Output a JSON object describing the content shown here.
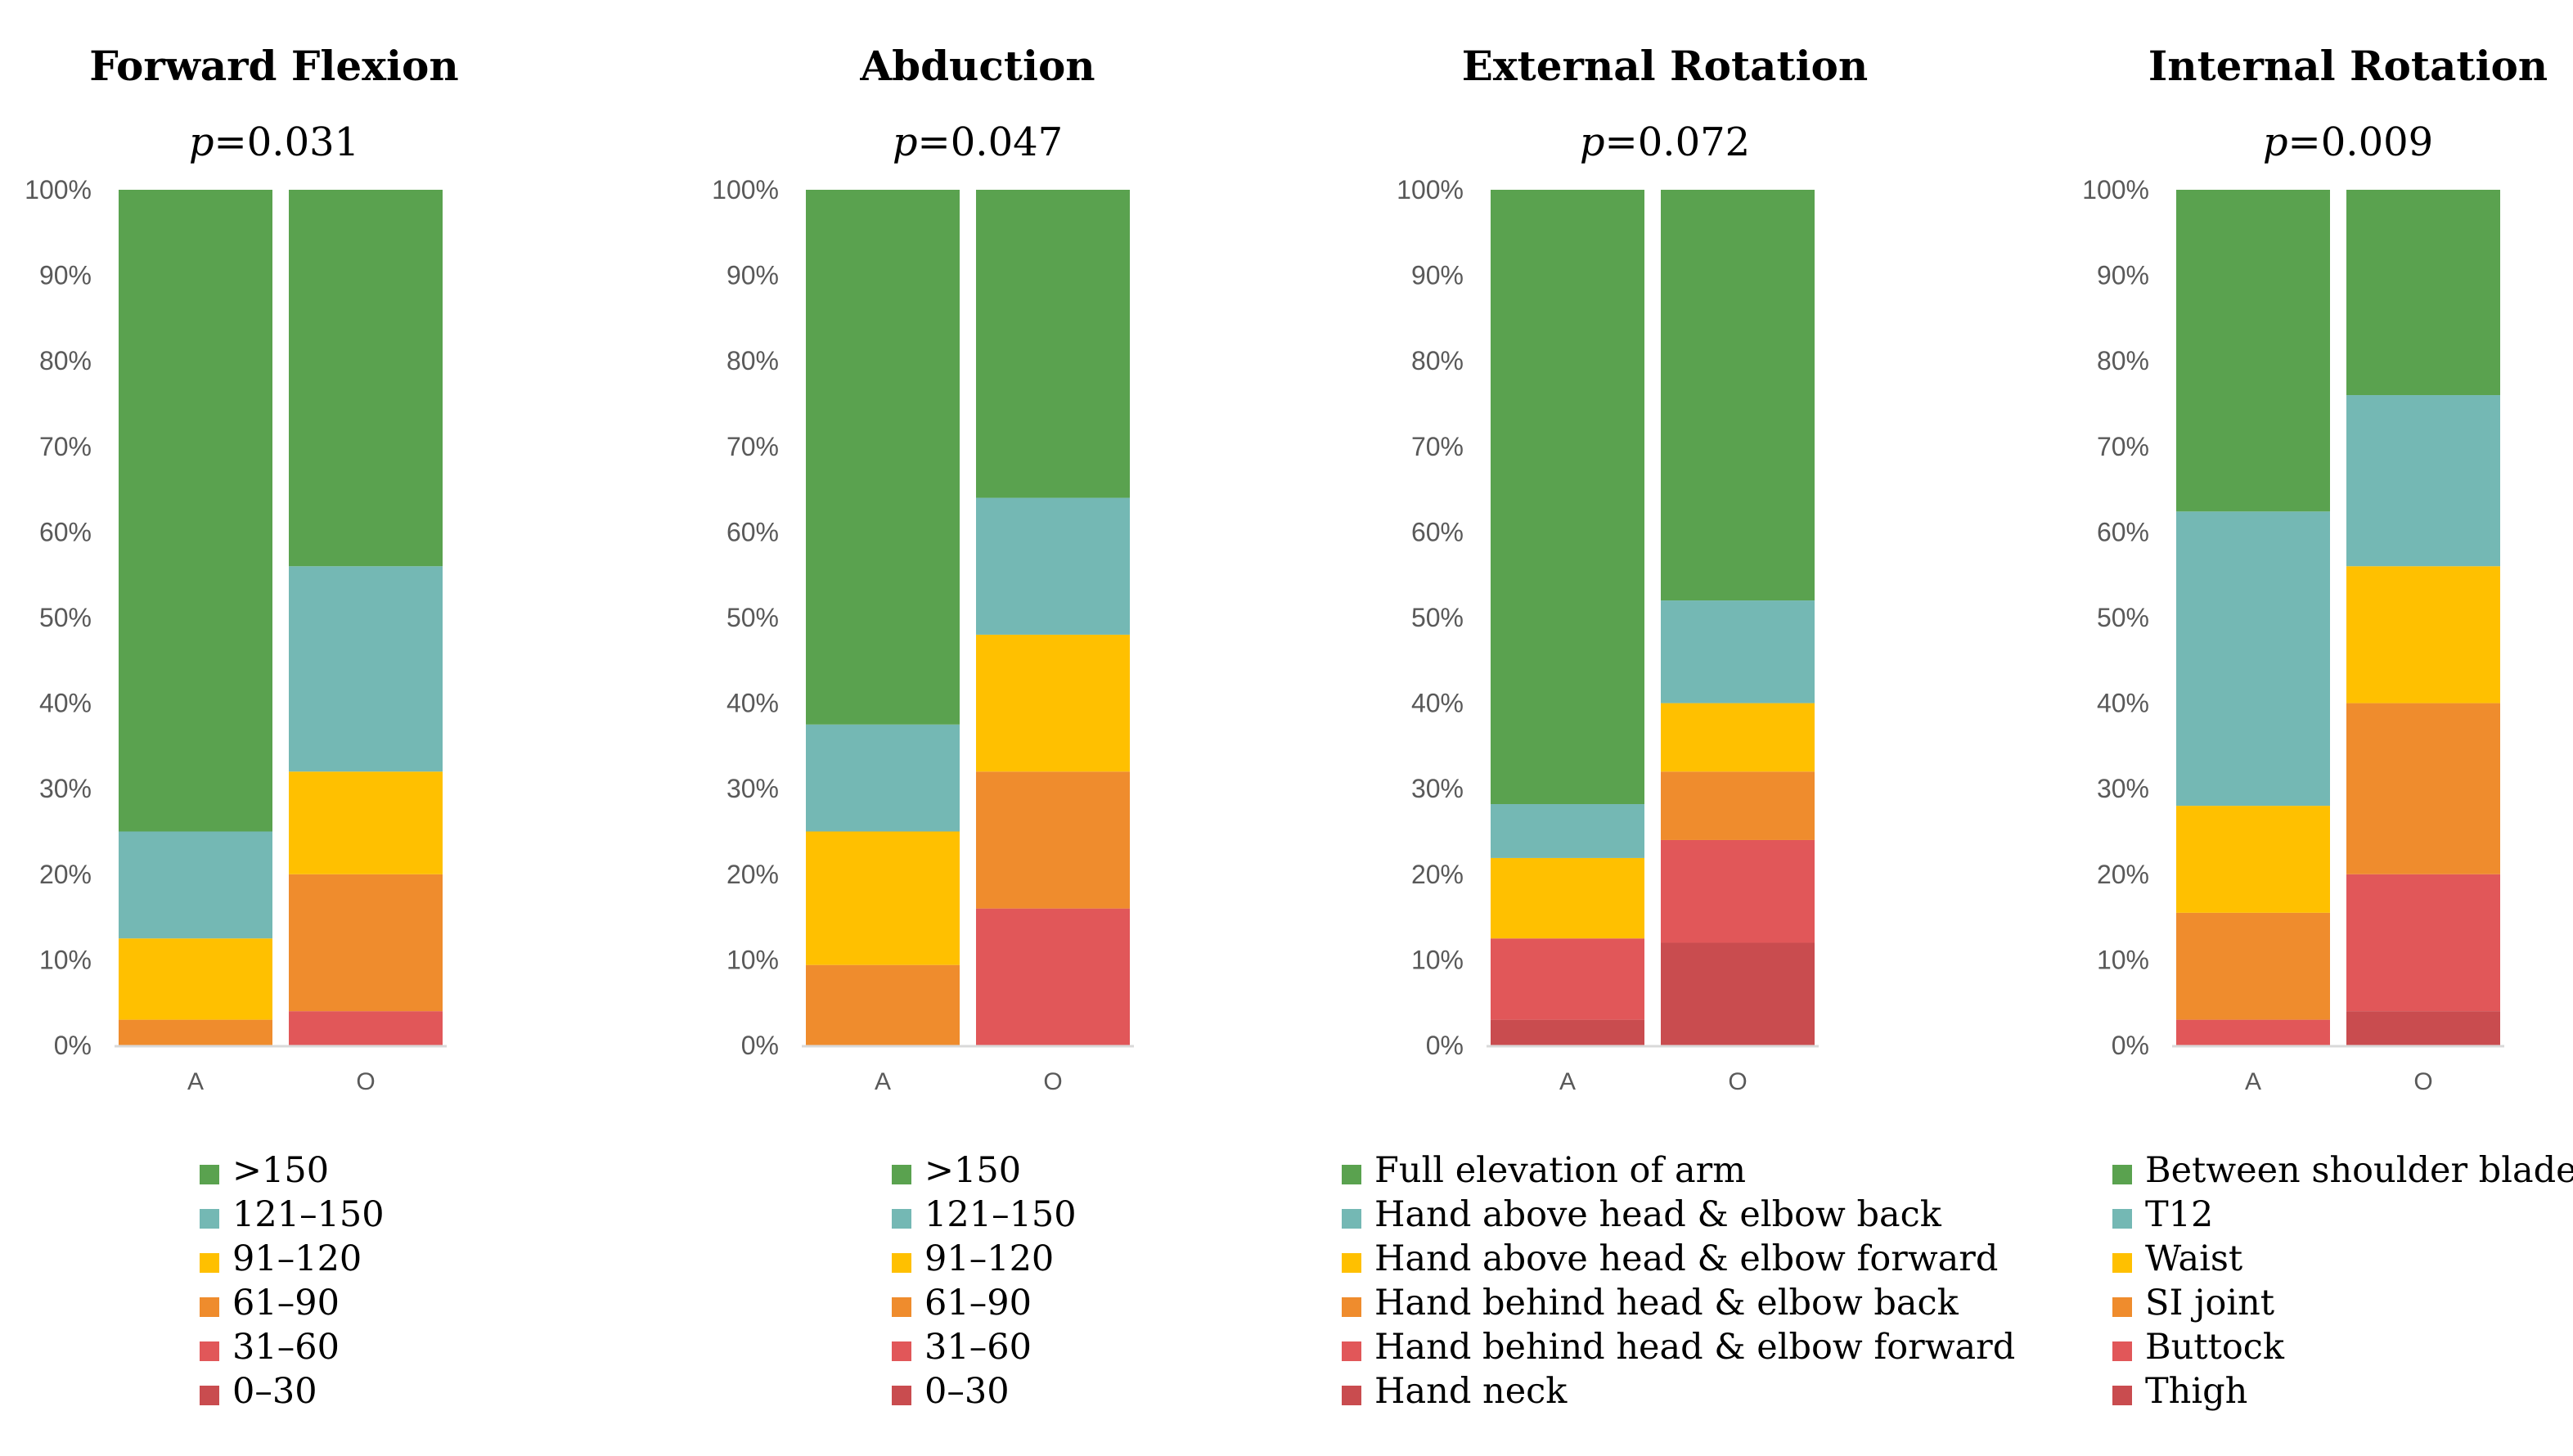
{
  "colors": [
    "#5aa24f",
    "#74b8b4",
    "#ffc000",
    "#ef8c2d",
    "#e15759",
    "#c94c4f"
  ],
  "chart_data": [
    {
      "type": "bar",
      "stacked": true,
      "title": "Forward Flexion",
      "p_prefix": "p",
      "p_value": "=0.031",
      "categories": [
        "A",
        "O"
      ],
      "ylim": [
        0,
        100
      ],
      "yticks": [
        "0%",
        "10%",
        "20%",
        "30%",
        "40%",
        "50%",
        "60%",
        "70%",
        "80%",
        "90%",
        "100%"
      ],
      "legend": [
        ">150",
        "121–150",
        "91–120",
        "61–90",
        "31–60",
        "0–30"
      ],
      "series": [
        {
          "name": "0–30",
          "values": [
            0,
            0
          ]
        },
        {
          "name": "31–60",
          "values": [
            0,
            4
          ]
        },
        {
          "name": "61–90",
          "values": [
            3,
            16
          ]
        },
        {
          "name": "91–120",
          "values": [
            9.5,
            12
          ]
        },
        {
          "name": "121–150",
          "values": [
            12.5,
            24
          ]
        },
        {
          "name": ">150",
          "values": [
            75,
            44
          ]
        }
      ]
    },
    {
      "type": "bar",
      "stacked": true,
      "title": "Abduction",
      "p_prefix": "p",
      "p_value": "=0.047",
      "categories": [
        "A",
        "O"
      ],
      "ylim": [
        0,
        100
      ],
      "yticks": [
        "0%",
        "10%",
        "20%",
        "30%",
        "40%",
        "50%",
        "60%",
        "70%",
        "80%",
        "90%",
        "100%"
      ],
      "legend": [
        ">150",
        "121–150",
        "91–120",
        "61–90",
        "31–60",
        "0–30"
      ],
      "series": [
        {
          "name": "0–30",
          "values": [
            0,
            0
          ]
        },
        {
          "name": "31–60",
          "values": [
            0,
            16
          ]
        },
        {
          "name": "61–90",
          "values": [
            9.4,
            16
          ]
        },
        {
          "name": "91–120",
          "values": [
            15.6,
            16
          ]
        },
        {
          "name": "121–150",
          "values": [
            12.5,
            16
          ]
        },
        {
          "name": ">150",
          "values": [
            62.5,
            36
          ]
        }
      ]
    },
    {
      "type": "bar",
      "stacked": true,
      "title": "External Rotation",
      "p_prefix": "p",
      "p_value": "=0.072",
      "categories": [
        "A",
        "O"
      ],
      "ylim": [
        0,
        100
      ],
      "yticks": [
        "0%",
        "10%",
        "20%",
        "30%",
        "40%",
        "50%",
        "60%",
        "70%",
        "80%",
        "90%",
        "100%"
      ],
      "legend": [
        "Full elevation of arm",
        "Hand above head & elbow back",
        "Hand above head & elbow forward",
        "Hand behind head & elbow back",
        "Hand behind head & elbow forward",
        "Hand neck"
      ],
      "series": [
        {
          "name": "Hand neck",
          "values": [
            3,
            12
          ]
        },
        {
          "name": "Hand behind head & elbow forward",
          "values": [
            9.5,
            12
          ]
        },
        {
          "name": "Hand behind head & elbow back",
          "values": [
            0,
            8
          ]
        },
        {
          "name": "Hand above head & elbow forward",
          "values": [
            9.4,
            8
          ]
        },
        {
          "name": "Hand above head & elbow back",
          "values": [
            6.3,
            12
          ]
        },
        {
          "name": "Full elevation of arm",
          "values": [
            71.8,
            48
          ]
        }
      ]
    },
    {
      "type": "bar",
      "stacked": true,
      "title": "Internal Rotation",
      "p_prefix": "p",
      "p_value": "=0.009",
      "categories": [
        "A",
        "O"
      ],
      "ylim": [
        0,
        100
      ],
      "yticks": [
        "0%",
        "10%",
        "20%",
        "30%",
        "40%",
        "50%",
        "60%",
        "70%",
        "80%",
        "90%",
        "100%"
      ],
      "legend": [
        "Between shoulder blades",
        "T12",
        "Waist",
        "SI joint",
        "Buttock",
        "Thigh"
      ],
      "series": [
        {
          "name": "Thigh",
          "values": [
            0,
            4
          ]
        },
        {
          "name": "Buttock",
          "values": [
            3,
            16
          ]
        },
        {
          "name": "SI joint",
          "values": [
            12.5,
            20
          ]
        },
        {
          "name": "Waist",
          "values": [
            12.5,
            16
          ]
        },
        {
          "name": "T12",
          "values": [
            34.4,
            20
          ]
        },
        {
          "name": "Between shoulder blades",
          "values": [
            37.6,
            24
          ]
        }
      ]
    }
  ]
}
